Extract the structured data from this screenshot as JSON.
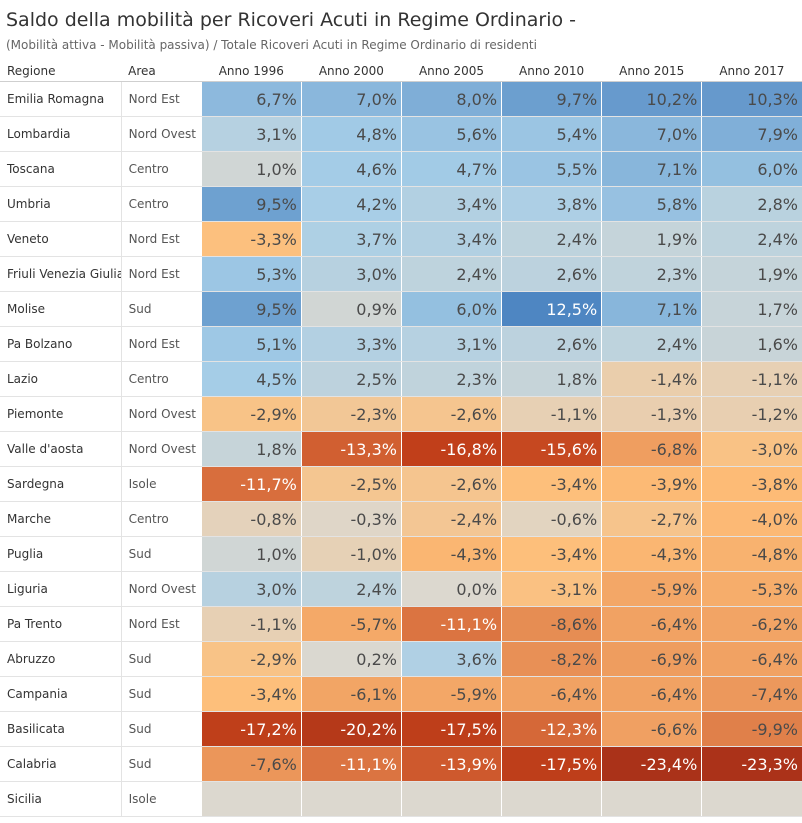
{
  "chart_data": {
    "type": "heatmap",
    "title": "Saldo della mobilità per Ricoveri Acuti in Regime Ordinario -",
    "subtitle": "(Mobilità attiva - Mobilità passiva) / Totale Ricoveri Acuti in Regime Ordinario di residenti",
    "row_headers": [
      "Regione",
      "Area"
    ],
    "columns": [
      "Anno 1996",
      "Anno 2000",
      "Anno 2005",
      "Anno 2010",
      "Anno 2015",
      "Anno 2017"
    ],
    "value_unit": "%",
    "colors": {
      "positive": "#4e86c2",
      "neutral": "#dcd8cf",
      "negative": "#c2401a"
    },
    "rows": [
      {
        "regione": "Emilia Romagna",
        "area": "Nord Est",
        "values": [
          6.7,
          7.0,
          8.0,
          9.7,
          10.2,
          10.3
        ]
      },
      {
        "regione": "Lombardia",
        "area": "Nord Ovest",
        "values": [
          3.1,
          4.8,
          5.6,
          5.4,
          7.0,
          7.9
        ]
      },
      {
        "regione": "Toscana",
        "area": "Centro",
        "values": [
          1.0,
          4.6,
          4.7,
          5.5,
          7.1,
          6.0
        ]
      },
      {
        "regione": "Umbria",
        "area": "Centro",
        "values": [
          9.5,
          4.2,
          3.4,
          3.8,
          5.8,
          2.8
        ]
      },
      {
        "regione": "Veneto",
        "area": "Nord Est",
        "values": [
          -3.3,
          3.7,
          3.4,
          2.4,
          1.9,
          2.4
        ]
      },
      {
        "regione": "Friuli Venezia Giulia",
        "area": "Nord Est",
        "values": [
          5.3,
          3.0,
          2.4,
          2.6,
          2.3,
          1.9
        ]
      },
      {
        "regione": "Molise",
        "area": "Sud",
        "values": [
          9.5,
          0.9,
          6.0,
          12.5,
          7.1,
          1.7
        ]
      },
      {
        "regione": "Pa Bolzano",
        "area": "Nord Est",
        "values": [
          5.1,
          3.3,
          3.1,
          2.6,
          2.4,
          1.6
        ]
      },
      {
        "regione": "Lazio",
        "area": "Centro",
        "values": [
          4.5,
          2.5,
          2.3,
          1.8,
          -1.4,
          -1.1
        ]
      },
      {
        "regione": "Piemonte",
        "area": "Nord Ovest",
        "values": [
          -2.9,
          -2.3,
          -2.6,
          -1.1,
          -1.3,
          -1.2
        ]
      },
      {
        "regione": "Valle d'aosta",
        "area": "Nord Ovest",
        "values": [
          1.8,
          -13.3,
          -16.8,
          -15.6,
          -6.8,
          -3.0
        ]
      },
      {
        "regione": "Sardegna",
        "area": "Isole",
        "values": [
          -11.7,
          -2.5,
          -2.6,
          -3.4,
          -3.9,
          -3.8
        ]
      },
      {
        "regione": "Marche",
        "area": "Centro",
        "values": [
          -0.8,
          -0.3,
          -2.4,
          -0.6,
          -2.7,
          -4.0
        ]
      },
      {
        "regione": "Puglia",
        "area": "Sud",
        "values": [
          1.0,
          -1.0,
          -4.3,
          -3.4,
          -4.3,
          -4.8
        ]
      },
      {
        "regione": "Liguria",
        "area": "Nord Ovest",
        "values": [
          3.0,
          2.4,
          0.0,
          -3.1,
          -5.9,
          -5.3
        ]
      },
      {
        "regione": "Pa Trento",
        "area": "Nord Est",
        "values": [
          -1.1,
          -5.7,
          -11.1,
          -8.6,
          -6.4,
          -6.2
        ]
      },
      {
        "regione": "Abruzzo",
        "area": "Sud",
        "values": [
          -2.9,
          0.2,
          3.6,
          -8.2,
          -6.9,
          -6.4
        ]
      },
      {
        "regione": "Campania",
        "area": "Sud",
        "values": [
          -3.4,
          -6.1,
          -5.9,
          -6.4,
          -6.4,
          -7.4
        ]
      },
      {
        "regione": "Basilicata",
        "area": "Sud",
        "values": [
          -17.2,
          -20.2,
          -17.5,
          -12.3,
          -6.6,
          -9.9
        ]
      },
      {
        "regione": "Calabria",
        "area": "Sud",
        "values": [
          -7.6,
          -11.1,
          -13.9,
          -17.5,
          -23.4,
          -23.3
        ]
      },
      {
        "regione": "Sicilia",
        "area": "Isole",
        "values": [
          null,
          null,
          null,
          null,
          null,
          null
        ]
      }
    ]
  }
}
